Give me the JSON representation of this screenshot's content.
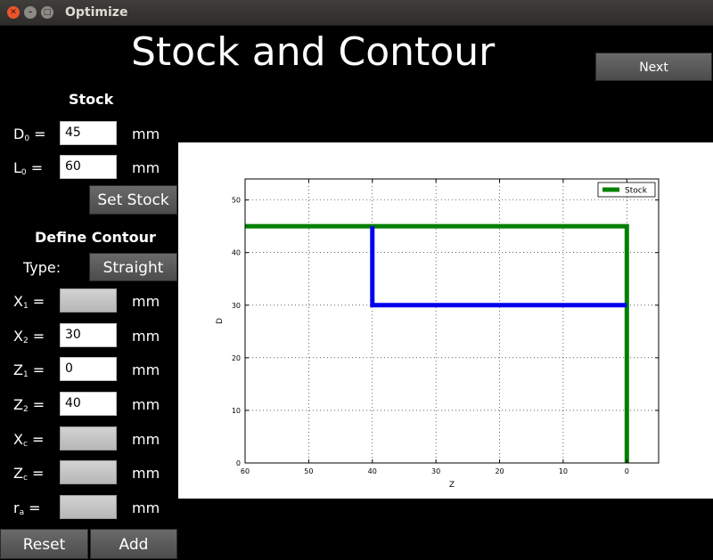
{
  "window": {
    "title": "Optimize"
  },
  "page_title": "Stock and Contour",
  "next_label": "Next",
  "stock": {
    "heading": "Stock",
    "d0": {
      "label_main": "D",
      "label_sub": "0",
      "eq": " =",
      "value": "45",
      "unit": "mm"
    },
    "l0": {
      "label_main": "L",
      "label_sub": "0",
      "eq": " =",
      "value": "60",
      "unit": "mm"
    },
    "set_label": "Set Stock"
  },
  "contour": {
    "heading": "Define Contour",
    "type_label": "Type:",
    "type_value": "Straight",
    "fields": [
      {
        "main": "X",
        "sub": "1",
        "eq": " =",
        "value": "",
        "unit": "mm",
        "enabled": false
      },
      {
        "main": "X",
        "sub": "2",
        "eq": " =",
        "value": "30",
        "unit": "mm",
        "enabled": true
      },
      {
        "main": "Z",
        "sub": "1",
        "eq": " =",
        "value": "0",
        "unit": "mm",
        "enabled": true
      },
      {
        "main": "Z",
        "sub": "2",
        "eq": " =",
        "value": "40",
        "unit": "mm",
        "enabled": true
      },
      {
        "main": "X",
        "sub": "c",
        "eq": " =",
        "value": "",
        "unit": "mm",
        "enabled": false
      },
      {
        "main": "Z",
        "sub": "c",
        "eq": " =",
        "value": "",
        "unit": "mm",
        "enabled": false
      },
      {
        "main": "r",
        "sub": "a",
        "eq": " =",
        "value": "",
        "unit": "mm",
        "enabled": false
      }
    ],
    "reset_label": "Reset",
    "add_label": "Add"
  },
  "chart_data": {
    "type": "line",
    "xlabel": "Z",
    "ylabel": "D",
    "xlim": [
      60,
      -5
    ],
    "ylim": [
      0,
      54
    ],
    "x_ticks": [
      60,
      50,
      40,
      30,
      20,
      10,
      0
    ],
    "y_ticks": [
      0,
      10,
      20,
      30,
      40,
      50
    ],
    "grid": true,
    "grid_style": "dotted",
    "legend_position": "top-right",
    "series": [
      {
        "name": "Stock",
        "color": "#008000",
        "points": [
          [
            60,
            45
          ],
          [
            0,
            45
          ],
          [
            0,
            0
          ]
        ]
      },
      {
        "color": "#0000ee",
        "points": [
          [
            40,
            45
          ],
          [
            40,
            30
          ],
          [
            0,
            30
          ]
        ]
      }
    ]
  }
}
